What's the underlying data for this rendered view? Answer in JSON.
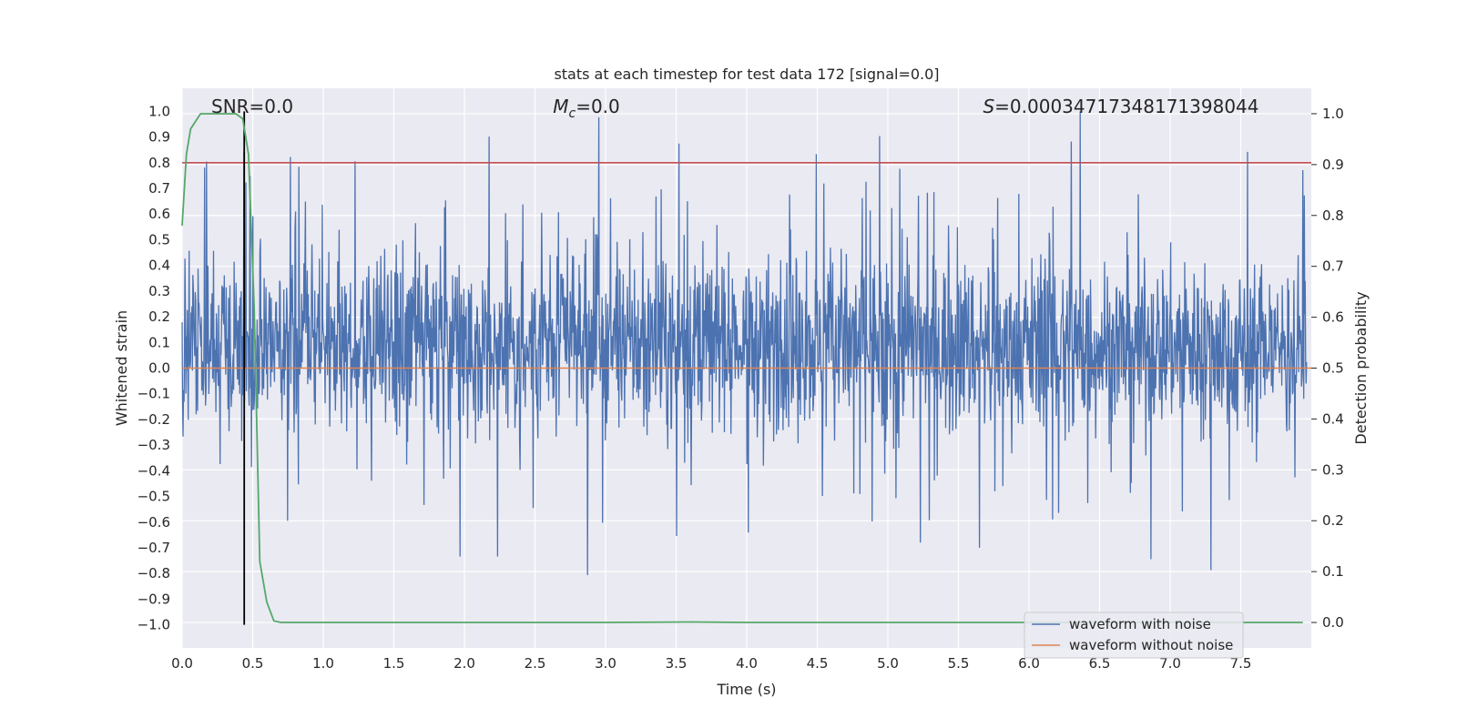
{
  "chart_data": {
    "type": "line",
    "title": "stats at each timestep for test data 172 [signal=0.0]",
    "xlabel": "Time (s)",
    "ylabel": "Whitened strain",
    "y2label": "Detection probability",
    "xlim": [
      0.0,
      8.0
    ],
    "ylim": [
      -1.09,
      1.09
    ],
    "y2lim": [
      -0.05,
      1.05
    ],
    "x_ticks": [
      "0.0",
      "0.5",
      "1.0",
      "1.5",
      "2.0",
      "2.5",
      "3.0",
      "3.5",
      "4.0",
      "4.5",
      "5.0",
      "5.5",
      "6.0",
      "6.5",
      "7.0",
      "7.5"
    ],
    "y_ticks": [
      "1.0",
      "0.9",
      "0.8",
      "0.7",
      "0.6",
      "0.5",
      "0.4",
      "0.3",
      "0.2",
      "0.1",
      "0.0",
      "−0.1",
      "−0.2",
      "−0.3",
      "−0.4",
      "−0.5",
      "−0.6",
      "−0.7",
      "−0.8",
      "−0.9",
      "−1.0"
    ],
    "y2_ticks": [
      "1.0",
      "0.9",
      "0.8",
      "0.7",
      "0.6",
      "0.5",
      "0.4",
      "0.3",
      "0.2",
      "0.1",
      "0.0"
    ],
    "grid": true,
    "annotations": {
      "snr": "SNR=0.0",
      "mc_symbol": "M",
      "mc_sub": "c",
      "mc_value": "=0.0",
      "s_symbol": "S",
      "s_value": "=0.00034717348171398044"
    },
    "threshold": {
      "value": 0.8,
      "color": "#c44e52"
    },
    "marker_time": 0.44,
    "series": [
      {
        "name": "waveform with noise",
        "color": "#4c72b0",
        "description_values": "dense noise between about -0.4 and 0.6, spikes up to 1.0 and down to -1.0"
      },
      {
        "name": "waveform without noise",
        "color": "#dd8452",
        "x": [
          0.0,
          8.0
        ],
        "y": [
          0.0,
          0.0
        ]
      },
      {
        "color": "#55a868",
        "axis": "right",
        "x": [
          0.0,
          0.03,
          0.06,
          0.13,
          0.2,
          0.3,
          0.38,
          0.43,
          0.47,
          0.51,
          0.55,
          0.6,
          0.65,
          0.7,
          1.0,
          2.0,
          3.0,
          3.6,
          4.0,
          5.0,
          6.0,
          7.0,
          7.94
        ],
        "y": [
          0.78,
          0.92,
          0.97,
          1.0,
          1.0,
          1.0,
          1.0,
          0.99,
          0.92,
          0.62,
          0.12,
          0.04,
          0.003,
          0.0,
          0.0,
          0.0,
          0.0,
          0.001,
          0.0,
          0.0,
          0.0,
          0.0,
          0.0
        ]
      }
    ],
    "legend_position": "lower right"
  }
}
